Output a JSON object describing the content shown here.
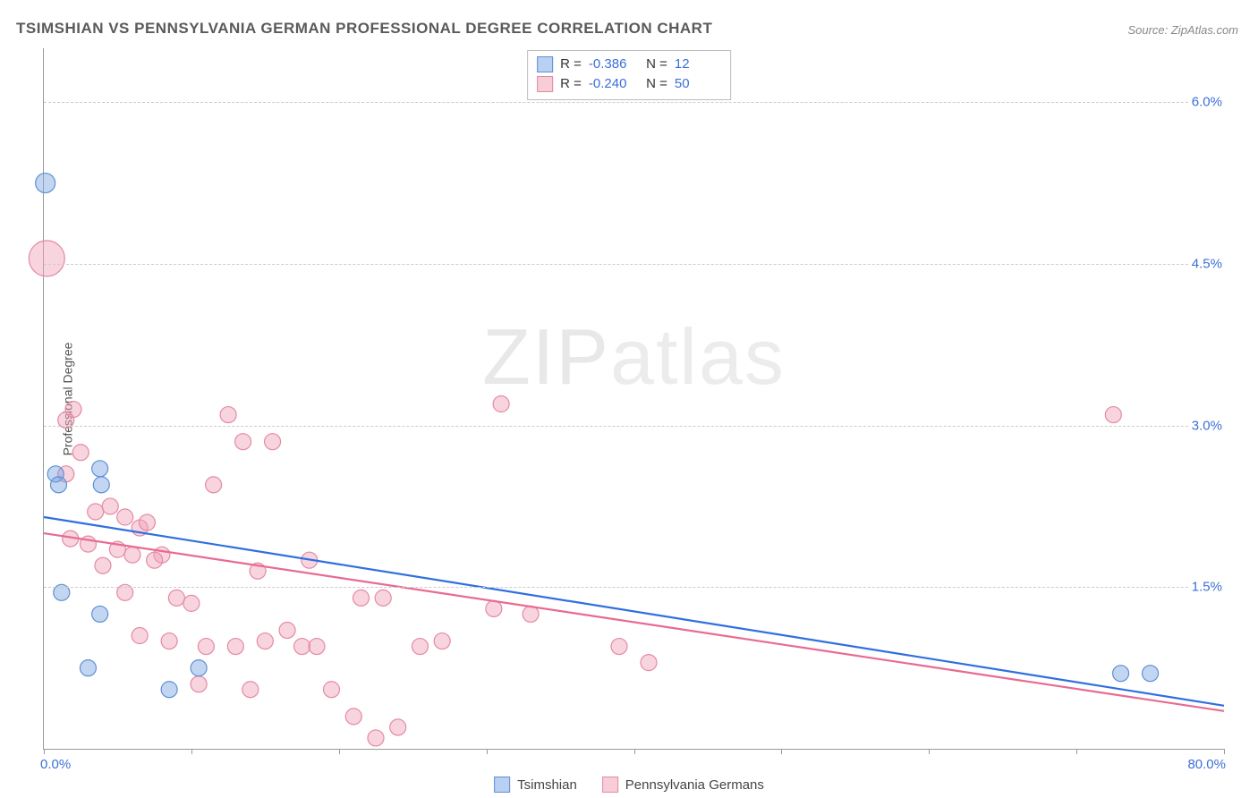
{
  "title": "TSIMSHIAN VS PENNSYLVANIA GERMAN PROFESSIONAL DEGREE CORRELATION CHART",
  "source": "Source: ZipAtlas.com",
  "watermark": {
    "bold": "ZIP",
    "thin": "atlas"
  },
  "y_axis_title": "Professional Degree",
  "chart": {
    "type": "scatter",
    "xlim": [
      0,
      80
    ],
    "ylim": [
      0,
      6.5
    ],
    "x_ticks": [
      0,
      10,
      20,
      30,
      40,
      50,
      60,
      70,
      80
    ],
    "x_tick_labels": {
      "0": "0.0%",
      "80": "80.0%"
    },
    "y_gridlines": [
      1.5,
      3.0,
      4.5,
      6.0
    ],
    "y_tick_labels": {
      "1.5": "1.5%",
      "3.0": "3.0%",
      "4.5": "4.5%",
      "6.0": "6.0%"
    },
    "background_color": "#ffffff",
    "grid_color": "#cccccc",
    "axis_color": "#999999",
    "tick_label_color": "#3b6fd8",
    "series": [
      {
        "name": "Tsimshian",
        "swatch_fill": "#b8d0f2",
        "swatch_border": "#5e8fd6",
        "marker_fill": "rgba(120,165,225,0.45)",
        "marker_stroke": "#5e8fd6",
        "line_color": "#2f6fe0",
        "R": "-0.386",
        "N": "12",
        "trend": {
          "x1": 0,
          "y1": 2.15,
          "x2": 80,
          "y2": 0.4
        },
        "marker_r": 9,
        "points": [
          {
            "x": 0.1,
            "y": 5.25,
            "r": 11
          },
          {
            "x": 0.8,
            "y": 2.55
          },
          {
            "x": 1.0,
            "y": 2.45
          },
          {
            "x": 3.8,
            "y": 2.6
          },
          {
            "x": 3.9,
            "y": 2.45
          },
          {
            "x": 1.2,
            "y": 1.45
          },
          {
            "x": 3.8,
            "y": 1.25
          },
          {
            "x": 3.0,
            "y": 0.75
          },
          {
            "x": 8.5,
            "y": 0.55
          },
          {
            "x": 10.5,
            "y": 0.75
          },
          {
            "x": 73.0,
            "y": 0.7
          },
          {
            "x": 75.0,
            "y": 0.7
          }
        ]
      },
      {
        "name": "Pennsylvania Germans",
        "swatch_fill": "#f7cdd8",
        "swatch_border": "#e48aa3",
        "marker_fill": "rgba(240,160,185,0.45)",
        "marker_stroke": "#e48aa3",
        "line_color": "#e86a92",
        "R": "-0.240",
        "N": "50",
        "trend": {
          "x1": 0,
          "y1": 2.0,
          "x2": 80,
          "y2": 0.35
        },
        "marker_r": 9,
        "points": [
          {
            "x": 0.2,
            "y": 4.55,
            "r": 20
          },
          {
            "x": 1.5,
            "y": 3.05
          },
          {
            "x": 2.0,
            "y": 3.15
          },
          {
            "x": 12.5,
            "y": 3.1
          },
          {
            "x": 13.5,
            "y": 2.85
          },
          {
            "x": 15.5,
            "y": 2.85
          },
          {
            "x": 31.0,
            "y": 3.2
          },
          {
            "x": 72.5,
            "y": 3.1
          },
          {
            "x": 2.5,
            "y": 2.75
          },
          {
            "x": 1.5,
            "y": 2.55
          },
          {
            "x": 11.5,
            "y": 2.45
          },
          {
            "x": 3.5,
            "y": 2.2
          },
          {
            "x": 4.5,
            "y": 2.25
          },
          {
            "x": 5.5,
            "y": 2.15
          },
          {
            "x": 6.5,
            "y": 2.05
          },
          {
            "x": 7.0,
            "y": 2.1
          },
          {
            "x": 1.8,
            "y": 1.95
          },
          {
            "x": 3.0,
            "y": 1.9
          },
          {
            "x": 5.0,
            "y": 1.85
          },
          {
            "x": 6.0,
            "y": 1.8
          },
          {
            "x": 8.0,
            "y": 1.8
          },
          {
            "x": 4.0,
            "y": 1.7
          },
          {
            "x": 7.5,
            "y": 1.75
          },
          {
            "x": 14.5,
            "y": 1.65
          },
          {
            "x": 18.0,
            "y": 1.75
          },
          {
            "x": 5.5,
            "y": 1.45
          },
          {
            "x": 9.0,
            "y": 1.4
          },
          {
            "x": 10.0,
            "y": 1.35
          },
          {
            "x": 21.5,
            "y": 1.4
          },
          {
            "x": 23.0,
            "y": 1.4
          },
          {
            "x": 30.5,
            "y": 1.3
          },
          {
            "x": 33.0,
            "y": 1.25
          },
          {
            "x": 6.5,
            "y": 1.05
          },
          {
            "x": 8.5,
            "y": 1.0
          },
          {
            "x": 11.0,
            "y": 0.95
          },
          {
            "x": 13.0,
            "y": 0.95
          },
          {
            "x": 15.0,
            "y": 1.0
          },
          {
            "x": 16.5,
            "y": 1.1
          },
          {
            "x": 17.5,
            "y": 0.95
          },
          {
            "x": 18.5,
            "y": 0.95
          },
          {
            "x": 25.5,
            "y": 0.95
          },
          {
            "x": 27.0,
            "y": 1.0
          },
          {
            "x": 39.0,
            "y": 0.95
          },
          {
            "x": 41.0,
            "y": 0.8
          },
          {
            "x": 10.5,
            "y": 0.6
          },
          {
            "x": 14.0,
            "y": 0.55
          },
          {
            "x": 19.5,
            "y": 0.55
          },
          {
            "x": 21.0,
            "y": 0.3
          },
          {
            "x": 22.5,
            "y": 0.1
          },
          {
            "x": 24.0,
            "y": 0.2
          }
        ]
      }
    ]
  },
  "bottom_legend": [
    {
      "label": "Tsimshian",
      "series": 0
    },
    {
      "label": "Pennsylvania Germans",
      "series": 1
    }
  ]
}
